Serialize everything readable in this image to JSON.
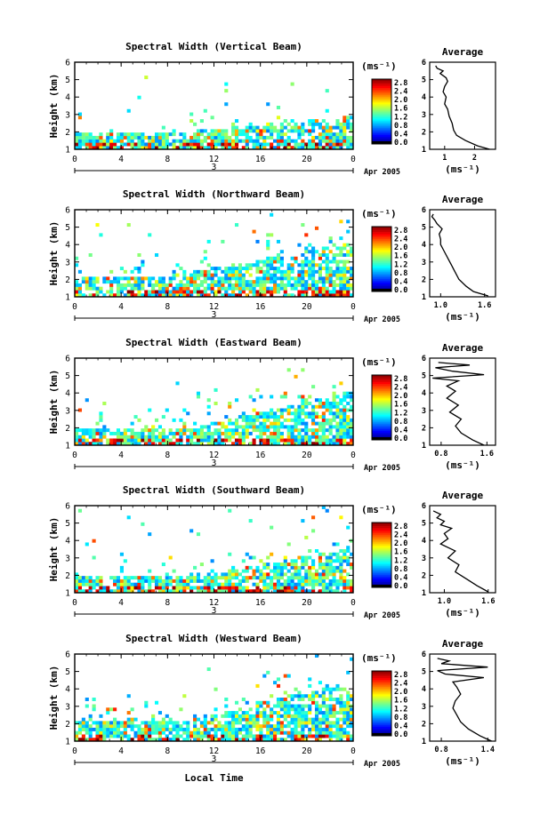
{
  "figure": {
    "x_axis_label": "Local Time",
    "x_ticks": [
      "0",
      "4",
      "8",
      "12",
      "16",
      "20",
      "0"
    ],
    "day_label": "3",
    "month_label": "Apr 2005",
    "y_axis_label": "Height (km)",
    "y_ticks": [
      "1",
      "2",
      "3",
      "4",
      "5",
      "6"
    ],
    "colorbar_unit": "(ms⁻¹)",
    "average_title": "Average",
    "average_xlabel": "(ms⁻¹)"
  },
  "chart_data": [
    {
      "type": "heatmap",
      "title": "Spectral Width (Vertical Beam)",
      "xlabel": "Local Time",
      "ylabel": "Height (km)",
      "xlim": [
        0,
        24
      ],
      "ylim": [
        1,
        6
      ],
      "colorbar": {
        "unit": "(ms⁻¹)",
        "ticks": [
          "2.8",
          "2.4",
          "2.0",
          "1.6",
          "1.2",
          "0.8",
          "0.4",
          "0.0"
        ]
      },
      "average_profile": {
        "title": "Average",
        "xlabel": "(ms⁻¹)",
        "xticks": [
          "1",
          "2"
        ],
        "xlim": [
          0.5,
          2.7
        ],
        "points": [
          [
            2.5,
            1.0
          ],
          [
            2.1,
            1.2
          ],
          [
            1.7,
            1.5
          ],
          [
            1.4,
            1.8
          ],
          [
            1.3,
            2.1
          ],
          [
            1.25,
            2.5
          ],
          [
            1.15,
            2.9
          ],
          [
            1.1,
            3.3
          ],
          [
            1.0,
            3.6
          ],
          [
            1.05,
            4.0
          ],
          [
            0.95,
            4.3
          ],
          [
            1.0,
            4.6
          ],
          [
            1.1,
            4.9
          ],
          [
            1.05,
            5.1
          ],
          [
            0.85,
            5.35
          ],
          [
            0.95,
            5.5
          ],
          [
            0.75,
            5.65
          ],
          [
            0.7,
            5.8
          ]
        ]
      }
    },
    {
      "type": "heatmap",
      "title": "Spectral Width (Northward Beam)",
      "xlabel": "Local Time",
      "ylabel": "Height (km)",
      "xlim": [
        0,
        24
      ],
      "ylim": [
        1,
        6
      ],
      "colorbar": {
        "unit": "(ms⁻¹)",
        "ticks": [
          "2.8",
          "2.4",
          "2.0",
          "1.6",
          "1.2",
          "0.8",
          "0.4",
          "0.0"
        ]
      },
      "average_profile": {
        "title": "Average",
        "xlabel": "(ms⁻¹)",
        "xticks": [
          "1.0",
          "1.6"
        ],
        "xlim": [
          0.85,
          1.75
        ],
        "points": [
          [
            1.65,
            1.05
          ],
          [
            1.45,
            1.3
          ],
          [
            1.35,
            1.6
          ],
          [
            1.25,
            2.0
          ],
          [
            1.2,
            2.4
          ],
          [
            1.15,
            2.8
          ],
          [
            1.1,
            3.2
          ],
          [
            1.05,
            3.6
          ],
          [
            1.0,
            4.0
          ],
          [
            1.0,
            4.3
          ],
          [
            0.98,
            4.6
          ],
          [
            1.02,
            4.9
          ],
          [
            0.95,
            5.2
          ],
          [
            0.92,
            5.4
          ],
          [
            0.88,
            5.6
          ],
          [
            0.9,
            5.75
          ]
        ]
      }
    },
    {
      "type": "heatmap",
      "title": "Spectral Width (Eastward Beam)",
      "xlabel": "Local Time",
      "ylabel": "Height (km)",
      "xlim": [
        0,
        24
      ],
      "ylim": [
        1,
        6
      ],
      "colorbar": {
        "unit": "(ms⁻¹)",
        "ticks": [
          "2.8",
          "2.4",
          "2.0",
          "1.6",
          "1.2",
          "0.8",
          "0.4",
          "0.0"
        ]
      },
      "average_profile": {
        "title": "Average",
        "xlabel": "(ms⁻¹)",
        "xticks": [
          "0.8",
          "1.6"
        ],
        "xlim": [
          0.6,
          1.75
        ],
        "points": [
          [
            1.55,
            1.0
          ],
          [
            1.35,
            1.3
          ],
          [
            1.15,
            1.7
          ],
          [
            1.05,
            2.1
          ],
          [
            1.15,
            2.5
          ],
          [
            0.95,
            2.9
          ],
          [
            1.1,
            3.3
          ],
          [
            0.9,
            3.7
          ],
          [
            1.05,
            4.1
          ],
          [
            0.9,
            4.4
          ],
          [
            1.1,
            4.7
          ],
          [
            0.65,
            4.85
          ],
          [
            1.55,
            5.05
          ],
          [
            1.0,
            5.25
          ],
          [
            0.7,
            5.45
          ],
          [
            1.3,
            5.6
          ],
          [
            0.75,
            5.75
          ]
        ]
      }
    },
    {
      "type": "heatmap",
      "title": "Spectral Width (Southward Beam)",
      "xlabel": "Local Time",
      "ylabel": "Height (km)",
      "xlim": [
        0,
        24
      ],
      "ylim": [
        1,
        6
      ],
      "colorbar": {
        "unit": "(ms⁻¹)",
        "ticks": [
          "2.8",
          "2.4",
          "2.0",
          "1.6",
          "1.2",
          "0.8",
          "0.4",
          "0.0"
        ]
      },
      "average_profile": {
        "title": "Average",
        "xlabel": "(ms⁻¹)",
        "xticks": [
          "1.0",
          "1.6"
        ],
        "xlim": [
          0.8,
          1.7
        ],
        "points": [
          [
            1.6,
            1.05
          ],
          [
            1.45,
            1.4
          ],
          [
            1.3,
            1.8
          ],
          [
            1.15,
            2.2
          ],
          [
            1.2,
            2.6
          ],
          [
            1.05,
            3.0
          ],
          [
            1.15,
            3.4
          ],
          [
            0.95,
            3.8
          ],
          [
            1.05,
            4.1
          ],
          [
            1.0,
            4.4
          ],
          [
            1.1,
            4.7
          ],
          [
            0.95,
            4.9
          ],
          [
            1.0,
            5.1
          ],
          [
            0.9,
            5.3
          ],
          [
            0.95,
            5.5
          ],
          [
            0.85,
            5.7
          ]
        ]
      }
    },
    {
      "type": "heatmap",
      "title": "Spectral Width (Westward Beam)",
      "xlabel": "Local Time",
      "ylabel": "Height (km)",
      "xlim": [
        0,
        24
      ],
      "ylim": [
        1,
        6
      ],
      "colorbar": {
        "unit": "(ms⁻¹)",
        "ticks": [
          "2.8",
          "2.4",
          "2.0",
          "1.6",
          "1.2",
          "0.8",
          "0.4",
          "0.0"
        ]
      },
      "average_profile": {
        "title": "Average",
        "xlabel": "(ms⁻¹)",
        "xticks": [
          "0.8",
          "1.4"
        ],
        "xlim": [
          0.65,
          1.5
        ],
        "points": [
          [
            1.45,
            1.0
          ],
          [
            1.3,
            1.3
          ],
          [
            1.15,
            1.7
          ],
          [
            1.05,
            2.1
          ],
          [
            1.0,
            2.5
          ],
          [
            0.95,
            2.9
          ],
          [
            0.98,
            3.3
          ],
          [
            1.05,
            3.7
          ],
          [
            1.0,
            4.1
          ],
          [
            0.95,
            4.4
          ],
          [
            1.35,
            4.65
          ],
          [
            0.85,
            4.85
          ],
          [
            0.75,
            5.05
          ],
          [
            1.4,
            5.25
          ],
          [
            0.8,
            5.45
          ],
          [
            0.9,
            5.6
          ],
          [
            0.75,
            5.75
          ]
        ]
      }
    }
  ]
}
